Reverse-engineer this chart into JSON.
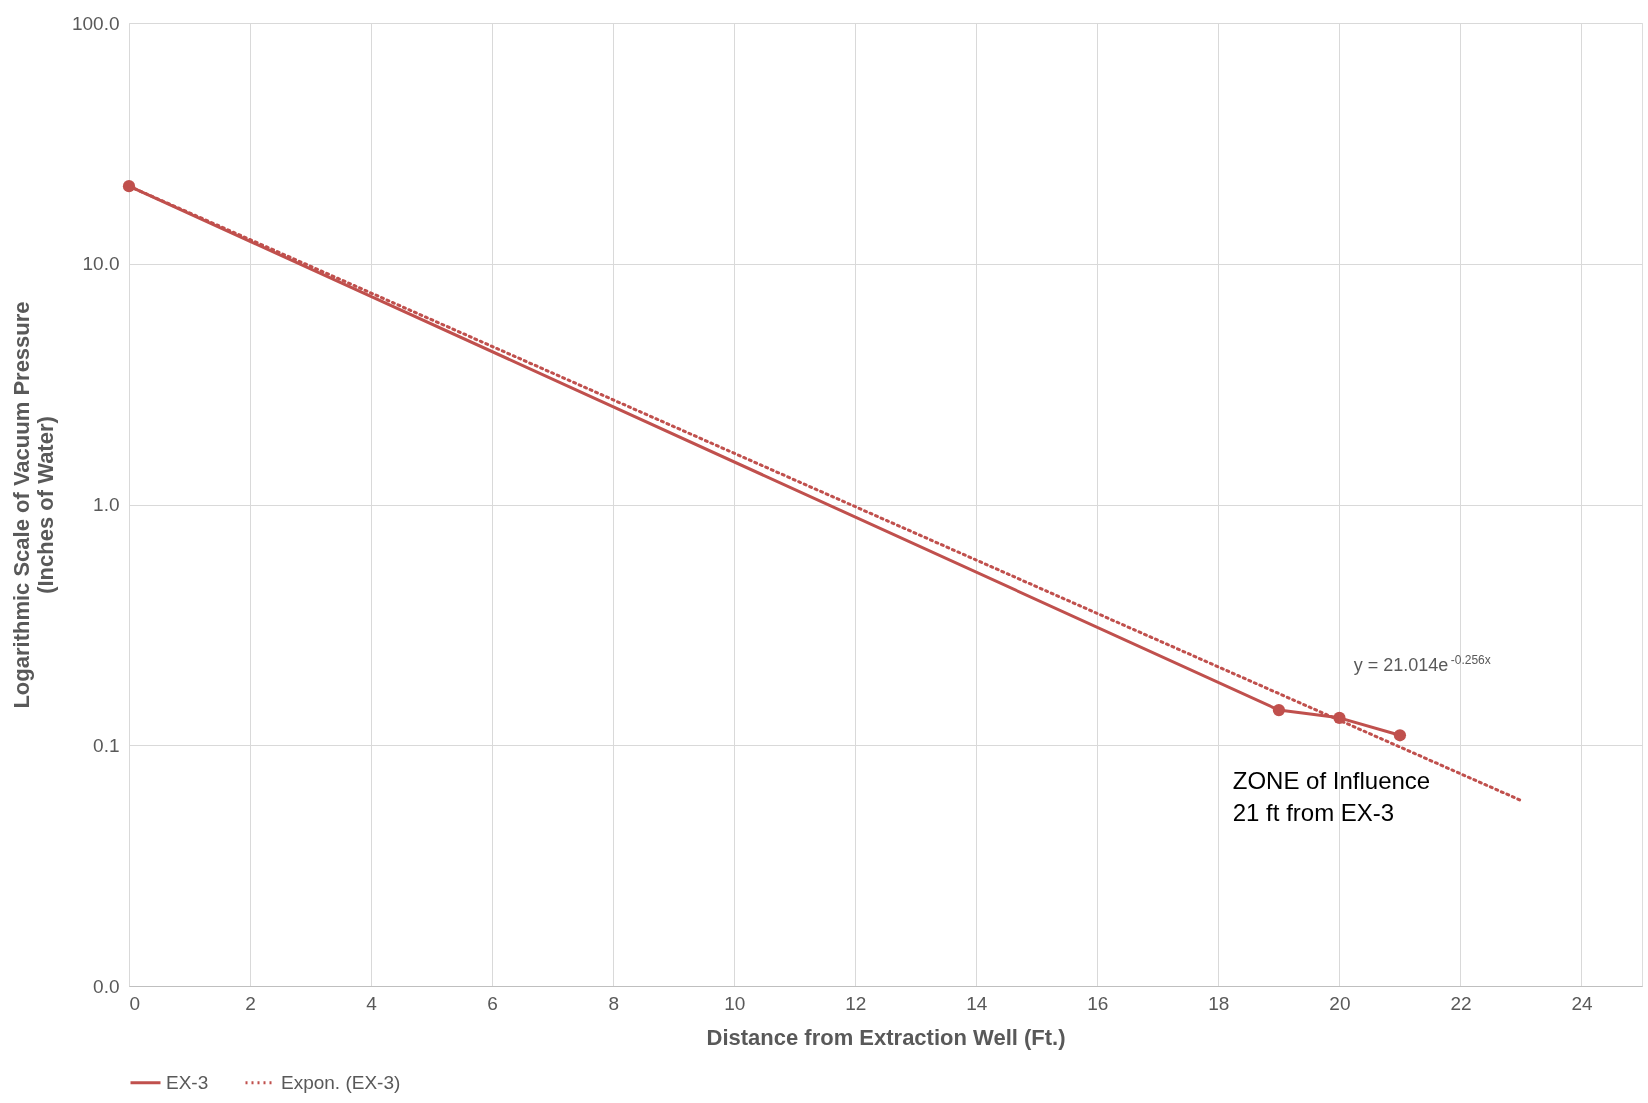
{
  "chart_data": {
    "type": "line",
    "xlabel": "Distance from Extraction Well (Ft.)",
    "ylabel": "Logarithmic Scale of Vacuum Pressure\n(Inches of Water)",
    "series": [
      {
        "name": "EX-3",
        "color": "#c0504d",
        "marker": "circle",
        "line_style": "solid",
        "x": [
          0,
          19,
          20,
          21
        ],
        "values": [
          21,
          0.14,
          0.13,
          0.11
        ]
      },
      {
        "name": "Expon. (EX-3)",
        "color": "#c0504d",
        "marker": "none",
        "line_style": "dotted",
        "x": [
          0,
          23
        ],
        "values": [
          21,
          0.059
        ]
      }
    ],
    "xlim": [
      0,
      25
    ],
    "xticks": [
      0,
      2,
      4,
      6,
      8,
      10,
      12,
      14,
      16,
      18,
      20,
      22,
      24
    ],
    "ylim": [
      0.01,
      100
    ],
    "yticks": [
      {
        "value": 0.01,
        "label": "0.0"
      },
      {
        "value": 0.1,
        "label": "0.1"
      },
      {
        "value": 1,
        "label": "1.0"
      },
      {
        "value": 10,
        "label": "10.0"
      },
      {
        "value": 100,
        "label": "100.0"
      }
    ],
    "log": true,
    "grid": true,
    "legend": "bottom",
    "annotations": [
      "y = 21.014e$^{-0.256x}$",
      "ZONE of Influence\n21 ft from EX-3"
    ]
  }
}
